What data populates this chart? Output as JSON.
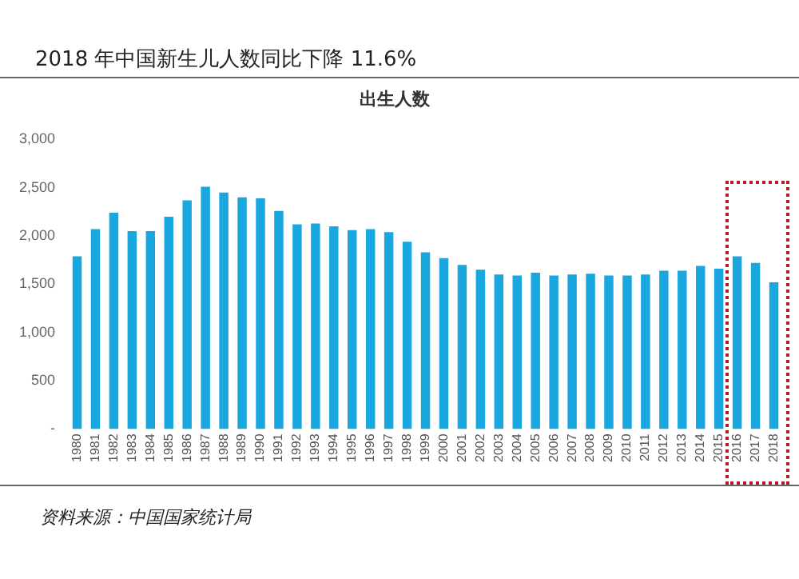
{
  "chart_data": {
    "type": "bar",
    "title": "出生人数",
    "subtitle": "2018 年中国新生儿人数同比下降 11.6%",
    "categories": [
      "1980",
      "1981",
      "1982",
      "1983",
      "1984",
      "1985",
      "1986",
      "1987",
      "1988",
      "1989",
      "1990",
      "1991",
      "1992",
      "1993",
      "1994",
      "1995",
      "1996",
      "1997",
      "1998",
      "1999",
      "2000",
      "2001",
      "2002",
      "2003",
      "2004",
      "2005",
      "2006",
      "2007",
      "2008",
      "2009",
      "2010",
      "2011",
      "2012",
      "2013",
      "2014",
      "2015",
      "2016",
      "2017",
      "2018"
    ],
    "values": [
      1790,
      2070,
      2240,
      2050,
      2050,
      2200,
      2370,
      2510,
      2450,
      2400,
      2390,
      2260,
      2120,
      2130,
      2100,
      2060,
      2070,
      2040,
      1940,
      1830,
      1770,
      1700,
      1650,
      1600,
      1590,
      1620,
      1590,
      1600,
      1610,
      1590,
      1590,
      1600,
      1640,
      1640,
      1690,
      1660,
      1790,
      1720,
      1520
    ],
    "color": "#1aa7df",
    "ylim": [
      0,
      3000
    ],
    "yticks": [
      {
        "value": 0,
        "label": "-"
      },
      {
        "value": 500,
        "label": "500"
      },
      {
        "value": 1000,
        "label": "1,000"
      },
      {
        "value": 1500,
        "label": "1,500"
      },
      {
        "value": 2000,
        "label": "2,000"
      },
      {
        "value": 2500,
        "label": "2,500"
      },
      {
        "value": 3000,
        "label": "3,000"
      }
    ],
    "grid": false,
    "legend": false,
    "annotations": [
      "资料来源：中国国家统计局"
    ]
  }
}
